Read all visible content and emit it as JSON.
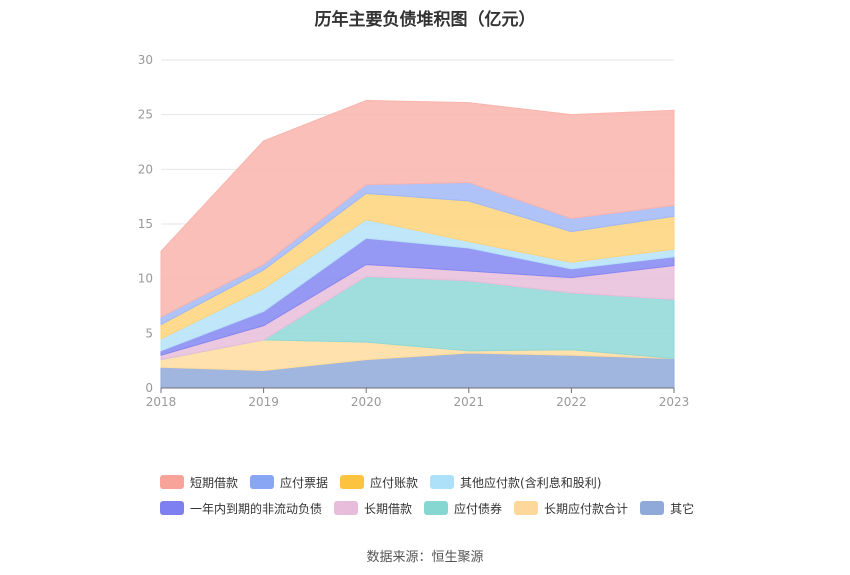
{
  "chart_data": {
    "type": "area",
    "stacked": true,
    "title": "历年主要负债堆积图（亿元）",
    "x": [
      "2018",
      "2019",
      "2020",
      "2021",
      "2022",
      "2023"
    ],
    "ylim": [
      0,
      30
    ],
    "yticks": [
      0,
      5,
      10,
      15,
      20,
      25,
      30
    ],
    "grid": true,
    "legend_position": "bottom",
    "series": [
      {
        "name": "其它",
        "color": "#8fa9d8",
        "values": [
          1.9,
          1.6,
          2.6,
          3.2,
          3.0,
          2.7
        ]
      },
      {
        "name": "长期应付款合计",
        "color": "#fedc9d",
        "values": [
          0.7,
          2.8,
          1.6,
          0.2,
          0.5,
          0.0
        ]
      },
      {
        "name": "应付债券",
        "color": "#8ed8d6",
        "values": [
          0.0,
          0.0,
          6.0,
          6.4,
          5.2,
          5.4
        ]
      },
      {
        "name": "长期借款",
        "color": "#e8bddb",
        "values": [
          0.4,
          1.3,
          1.1,
          0.9,
          1.4,
          3.1
        ]
      },
      {
        "name": "一年内到期的非流动负债",
        "color": "#8487f2",
        "values": [
          0.4,
          1.3,
          2.4,
          2.1,
          0.8,
          0.8
        ]
      },
      {
        "name": "其他应付款(含利息和股利)",
        "color": "#b5e2f9",
        "values": [
          1.1,
          2.1,
          1.7,
          0.6,
          0.6,
          0.7
        ]
      },
      {
        "name": "应付账款",
        "color": "#fdd37a",
        "values": [
          1.3,
          1.7,
          2.4,
          3.7,
          2.8,
          3.0
        ]
      },
      {
        "name": "应付票据",
        "color": "#a1b8f7",
        "values": [
          0.7,
          0.5,
          0.8,
          1.7,
          1.2,
          1.0
        ]
      },
      {
        "name": "短期借款",
        "color": "#f9b4ad",
        "values": [
          6.0,
          11.3,
          7.7,
          7.3,
          9.5,
          8.7
        ]
      }
    ],
    "legend_order": [
      "短期借款",
      "应付票据",
      "应付账款",
      "其他应付款(含利息和股利)",
      "一年内到期的非流动负债",
      "长期借款",
      "应付债券",
      "长期应付款合计",
      "其它"
    ]
  },
  "legend_colors": {
    "短期借款": "#f8a39a",
    "应付票据": "#88a6f3",
    "应付账款": "#fcc33e",
    "其他应付款(含利息和股利)": "#ade0f9",
    "一年内到期的非流动负债": "#7e80f2",
    "长期借款": "#e8bddb",
    "应付债券": "#86d6d2",
    "长期应付款合计": "#fdd89a",
    "其它": "#8fa9d8"
  },
  "source": "数据来源：恒生聚源"
}
